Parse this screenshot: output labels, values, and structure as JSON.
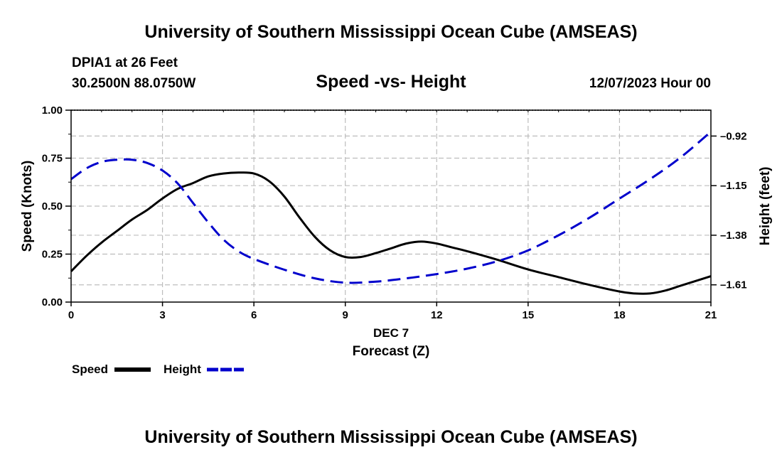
{
  "page": {
    "title": "University of Southern Mississippi Ocean Cube (AMSEAS)",
    "footer_title": "University of Southern Mississippi Ocean Cube (AMSEAS)",
    "station": "DPIA1 at 26 Feet",
    "coords": "30.2500N  88.0750W",
    "datetime": "12/07/2023 Hour 00"
  },
  "chart_data": {
    "type": "line",
    "title": "Speed -vs- Height",
    "xlabel": "Forecast (Z)",
    "xlabel_date": "DEC 7",
    "ylabel": "Speed (Knots)",
    "y2label": "Height (feet)",
    "xlim": [
      0,
      21
    ],
    "ylim": [
      0,
      1.0
    ],
    "y2lim": [
      -1.69,
      -0.8
    ],
    "x_ticks": [
      0,
      3,
      6,
      9,
      12,
      15,
      18,
      21
    ],
    "x_tick_labels": [
      "0",
      "3",
      "6",
      "9",
      "12",
      "15",
      "18",
      "21"
    ],
    "y_ticks": [
      0,
      0.25,
      0.5,
      0.75,
      1.0
    ],
    "y_tick_labels": [
      "0.00",
      "0.25",
      "0.50",
      "0.75",
      "1.00"
    ],
    "y2_ticks": [
      -0.92,
      -1.15,
      -1.38,
      -1.61
    ],
    "y2_tick_labels": [
      "–0.92",
      "–1.15",
      "–1.38",
      "–1.61"
    ],
    "grid": true,
    "legend_position": "bottom-left",
    "series": [
      {
        "name": "Speed",
        "axis": "left",
        "color": "#000000",
        "dash": "solid",
        "x": [
          0,
          0.5,
          1,
          1.5,
          2,
          2.5,
          3,
          3.5,
          4,
          4.5,
          5,
          5.5,
          6,
          6.5,
          7,
          7.5,
          8,
          8.5,
          9,
          9.5,
          10,
          10.5,
          11,
          11.5,
          12,
          12.5,
          13,
          14,
          15,
          16,
          17,
          18,
          18.5,
          19,
          19.5,
          20,
          20.5,
          21
        ],
        "values": [
          0.16,
          0.24,
          0.31,
          0.37,
          0.43,
          0.48,
          0.54,
          0.59,
          0.62,
          0.655,
          0.67,
          0.675,
          0.67,
          0.63,
          0.55,
          0.44,
          0.34,
          0.27,
          0.235,
          0.235,
          0.255,
          0.28,
          0.305,
          0.315,
          0.305,
          0.285,
          0.265,
          0.22,
          0.17,
          0.13,
          0.09,
          0.055,
          0.045,
          0.045,
          0.06,
          0.085,
          0.11,
          0.135
        ]
      },
      {
        "name": "Height",
        "axis": "right",
        "color": "#0000cc",
        "dash": "dashed",
        "x": [
          0,
          0.5,
          1,
          1.5,
          2,
          2.5,
          3,
          3.5,
          4,
          4.5,
          5,
          5.5,
          6,
          7,
          8,
          9,
          10,
          11,
          12,
          13,
          14,
          15,
          16,
          17,
          18,
          19,
          20,
          21
        ],
        "values": [
          -1.12,
          -1.07,
          -1.04,
          -1.03,
          -1.03,
          -1.045,
          -1.08,
          -1.14,
          -1.23,
          -1.32,
          -1.4,
          -1.455,
          -1.49,
          -1.54,
          -1.58,
          -1.6,
          -1.595,
          -1.58,
          -1.56,
          -1.535,
          -1.5,
          -1.45,
          -1.38,
          -1.3,
          -1.21,
          -1.12,
          -1.02,
          -0.9
        ]
      }
    ],
    "legend": [
      {
        "label": "Speed",
        "color": "#000000",
        "dash": "solid"
      },
      {
        "label": "Height",
        "color": "#0000cc",
        "dash": "dashed"
      }
    ]
  }
}
